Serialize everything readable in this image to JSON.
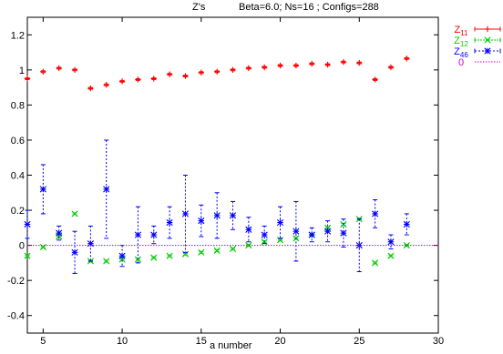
{
  "chart_data": {
    "type": "scatter",
    "title": "Z's",
    "subtitle": "Beta=6.0; Ns=16 ; Configs=288",
    "xlabel": "a number",
    "ylabel": "",
    "xlim": [
      4,
      30
    ],
    "ylim": [
      -0.5,
      1.3
    ],
    "xticks": [
      5,
      10,
      15,
      20,
      25,
      30
    ],
    "yticks": [
      -0.4,
      -0.2,
      0,
      0.2,
      0.4,
      0.6,
      0.8,
      1,
      1.2
    ],
    "ytick_labels": [
      "-0.4",
      "-0.2",
      "0",
      "0.2",
      "0.4",
      "0.6",
      "0.8",
      "1",
      "1.2"
    ],
    "grid": false,
    "legend_position": "outside-right",
    "series": [
      {
        "name": "Z11",
        "sub": "11",
        "color": "#ff0000",
        "marker": "plus",
        "x": [
          4,
          5,
          6,
          7,
          8,
          9,
          10,
          11,
          12,
          13,
          14,
          15,
          16,
          17,
          18,
          19,
          20,
          21,
          22,
          23,
          24,
          25,
          26,
          27,
          28
        ],
        "y": [
          0.95,
          0.99,
          1.01,
          1.0,
          0.895,
          0.915,
          0.935,
          0.945,
          0.95,
          0.975,
          0.965,
          0.985,
          0.99,
          1.0,
          1.01,
          1.015,
          1.025,
          1.025,
          1.035,
          1.03,
          1.045,
          1.04,
          0.945,
          1.015,
          1.065
        ],
        "err": [
          0.005,
          0.005,
          0.005,
          0.005,
          0.005,
          0.005,
          0.005,
          0.005,
          0.005,
          0.005,
          0.005,
          0.005,
          0.005,
          0.005,
          0.005,
          0.005,
          0.005,
          0.005,
          0.005,
          0.005,
          0.005,
          0.005,
          0.005,
          0.005,
          0.005
        ]
      },
      {
        "name": "Z12",
        "sub": "12",
        "color": "#00cc00",
        "marker": "cross",
        "x": [
          4,
          5,
          6,
          7,
          8,
          9,
          10,
          11,
          12,
          13,
          14,
          15,
          16,
          17,
          18,
          19,
          20,
          21,
          22,
          23,
          24,
          25,
          26,
          27,
          28
        ],
        "y": [
          -0.06,
          -0.01,
          0.05,
          0.18,
          -0.09,
          -0.09,
          -0.08,
          -0.08,
          -0.07,
          -0.06,
          -0.05,
          -0.04,
          -0.03,
          -0.02,
          0.0,
          0.02,
          0.03,
          0.04,
          0.06,
          0.1,
          0.12,
          0.15,
          -0.1,
          -0.06,
          0.0
        ],
        "err": [
          0.005,
          0.005,
          0.005,
          0.005,
          0.005,
          0.005,
          0.005,
          0.005,
          0.005,
          0.005,
          0.005,
          0.005,
          0.005,
          0.005,
          0.005,
          0.005,
          0.005,
          0.005,
          0.005,
          0.005,
          0.005,
          0.005,
          0.005,
          0.005,
          0.005
        ]
      },
      {
        "name": "Z46",
        "sub": "46",
        "color": "#0000ff",
        "marker": "star",
        "x": [
          4,
          5,
          6,
          7,
          8,
          9,
          10,
          11,
          12,
          13,
          14,
          15,
          16,
          17,
          18,
          19,
          20,
          21,
          22,
          23,
          24,
          25,
          26,
          27,
          28
        ],
        "y": [
          0.12,
          0.32,
          0.07,
          -0.04,
          0.01,
          0.32,
          -0.06,
          0.06,
          0.06,
          0.13,
          0.18,
          0.14,
          0.17,
          0.17,
          0.09,
          0.06,
          0.13,
          0.08,
          0.06,
          0.08,
          0.07,
          0.0,
          0.18,
          0.02,
          0.12
        ],
        "err": [
          0.08,
          0.14,
          0.04,
          0.12,
          0.1,
          0.28,
          0.06,
          0.16,
          0.05,
          0.09,
          0.22,
          0.09,
          0.13,
          0.08,
          0.07,
          0.05,
          0.09,
          0.17,
          0.04,
          0.06,
          0.08,
          0.15,
          0.08,
          0.04,
          0.06
        ]
      },
      {
        "name": "0",
        "sub": "",
        "color": "#cc00cc",
        "marker": "line",
        "x": [
          4,
          30
        ],
        "y": [
          0,
          0
        ]
      }
    ]
  }
}
